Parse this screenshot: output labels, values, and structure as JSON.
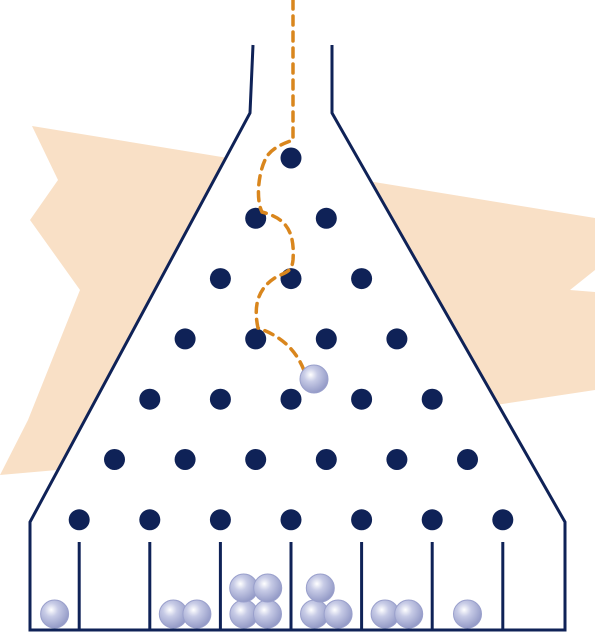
{
  "colors": {
    "background_band": "#f9e0c6",
    "structure": "#0f2257",
    "peg": "#0f2257",
    "path": "#d9861d",
    "ball_fill": "#b9bfdc",
    "ball_shade": "#8f96c4",
    "ball_highlight": "#ffffff"
  },
  "peg_rows": 7,
  "bins": 7,
  "balls_in_bins": [
    1,
    0,
    2,
    4,
    3,
    2,
    1
  ]
}
